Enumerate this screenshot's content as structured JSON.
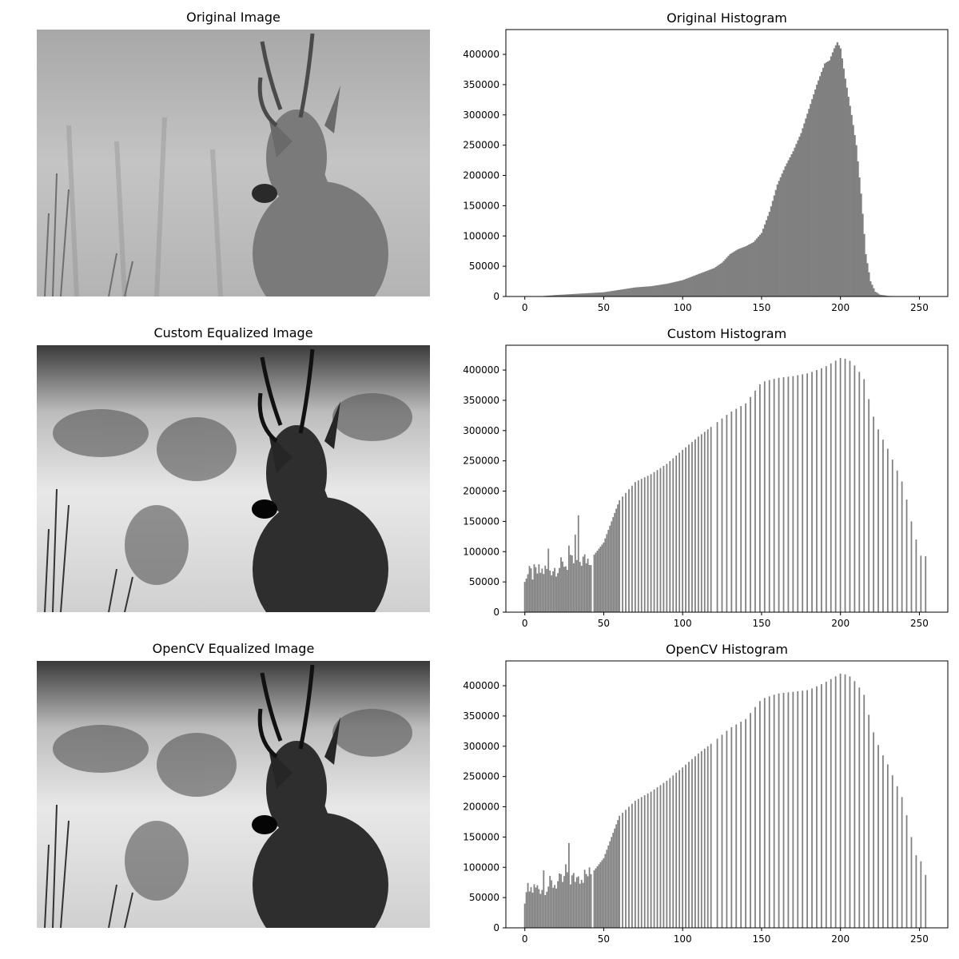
{
  "panels": {
    "original_image_title": "Original Image",
    "custom_image_title": "Custom Equalized Image",
    "opencv_image_title": "OpenCV Equalized Image"
  },
  "chart_data": [
    {
      "type": "bar",
      "title": "Original Histogram",
      "xlabel": "",
      "ylabel": "",
      "xlim": [
        -12,
        268
      ],
      "ylim": [
        0,
        441000
      ],
      "xticks": [
        0,
        50,
        100,
        150,
        200,
        250
      ],
      "yticks": [
        0,
        50000,
        100000,
        150000,
        200000,
        250000,
        300000,
        350000,
        400000
      ],
      "bar_color": "#808080",
      "grid": false,
      "mode": "continuous",
      "anchors": [
        [
          10,
          0
        ],
        [
          12,
          800
        ],
        [
          20,
          2500
        ],
        [
          30,
          4000
        ],
        [
          40,
          5500
        ],
        [
          50,
          7000
        ],
        [
          60,
          11000
        ],
        [
          70,
          15000
        ],
        [
          80,
          17000
        ],
        [
          90,
          21000
        ],
        [
          100,
          27000
        ],
        [
          110,
          37000
        ],
        [
          120,
          47000
        ],
        [
          125,
          56000
        ],
        [
          130,
          70000
        ],
        [
          135,
          78000
        ],
        [
          140,
          83000
        ],
        [
          145,
          90000
        ],
        [
          150,
          105000
        ],
        [
          155,
          140000
        ],
        [
          160,
          185000
        ],
        [
          165,
          215000
        ],
        [
          170,
          240000
        ],
        [
          175,
          270000
        ],
        [
          180,
          310000
        ],
        [
          185,
          350000
        ],
        [
          190,
          385000
        ],
        [
          193,
          390000
        ],
        [
          196,
          410000
        ],
        [
          198,
          420000
        ],
        [
          200,
          410000
        ],
        [
          203,
          360000
        ],
        [
          207,
          300000
        ],
        [
          210,
          250000
        ],
        [
          213,
          170000
        ],
        [
          216,
          70000
        ],
        [
          219,
          25000
        ],
        [
          222,
          8000
        ],
        [
          225,
          3000
        ],
        [
          230,
          1000
        ],
        [
          236,
          300
        ],
        [
          240,
          0
        ]
      ]
    },
    {
      "type": "bar",
      "title": "Custom Histogram",
      "xlabel": "",
      "ylabel": "",
      "xlim": [
        -12,
        268
      ],
      "ylim": [
        0,
        441000
      ],
      "xticks": [
        0,
        50,
        100,
        150,
        200,
        250
      ],
      "yticks": [
        0,
        50000,
        100000,
        150000,
        200000,
        250000,
        300000,
        350000,
        400000
      ],
      "bar_color": "#808080",
      "grid": false,
      "mode": "sparse",
      "dense_until": 42,
      "spikes": [
        [
          15,
          105000
        ],
        [
          25,
          75000
        ],
        [
          28,
          110000
        ],
        [
          32,
          128000
        ],
        [
          34,
          160000
        ]
      ],
      "sparse_start": 44,
      "envelope": [
        [
          44,
          95000
        ],
        [
          50,
          115000
        ],
        [
          55,
          150000
        ],
        [
          60,
          185000
        ],
        [
          70,
          215000
        ],
        [
          80,
          228000
        ],
        [
          90,
          245000
        ],
        [
          100,
          268000
        ],
        [
          110,
          290000
        ],
        [
          120,
          310000
        ],
        [
          130,
          330000
        ],
        [
          140,
          345000
        ],
        [
          150,
          380000
        ],
        [
          160,
          387000
        ],
        [
          170,
          390000
        ],
        [
          180,
          395000
        ],
        [
          190,
          405000
        ],
        [
          200,
          420000
        ],
        [
          205,
          418000
        ],
        [
          210,
          405000
        ],
        [
          215,
          385000
        ],
        [
          220,
          330000
        ],
        [
          225,
          295000
        ],
        [
          230,
          270000
        ],
        [
          235,
          240000
        ],
        [
          240,
          210000
        ],
        [
          245,
          150000
        ],
        [
          250,
          100000
        ],
        [
          253,
          80000
        ],
        [
          255,
          105000
        ]
      ]
    },
    {
      "type": "bar",
      "title": "OpenCV Histogram",
      "xlabel": "",
      "ylabel": "",
      "xlim": [
        -12,
        268
      ],
      "ylim": [
        0,
        441000
      ],
      "xticks": [
        0,
        50,
        100,
        150,
        200,
        250
      ],
      "yticks": [
        0,
        50000,
        100000,
        150000,
        200000,
        250000,
        300000,
        350000,
        400000
      ],
      "bar_color": "#808080",
      "grid": false,
      "mode": "sparse",
      "dense_until": 42,
      "spikes": [
        [
          0,
          40000
        ],
        [
          12,
          95000
        ],
        [
          26,
          105000
        ],
        [
          28,
          140000
        ],
        [
          34,
          85000
        ]
      ],
      "sparse_start": 44,
      "envelope": [
        [
          44,
          95000
        ],
        [
          50,
          115000
        ],
        [
          55,
          150000
        ],
        [
          60,
          185000
        ],
        [
          70,
          210000
        ],
        [
          80,
          225000
        ],
        [
          90,
          243000
        ],
        [
          100,
          265000
        ],
        [
          110,
          288000
        ],
        [
          120,
          308000
        ],
        [
          130,
          330000
        ],
        [
          140,
          345000
        ],
        [
          150,
          378000
        ],
        [
          160,
          387000
        ],
        [
          170,
          390000
        ],
        [
          180,
          393000
        ],
        [
          190,
          405000
        ],
        [
          200,
          420000
        ],
        [
          205,
          418000
        ],
        [
          210,
          405000
        ],
        [
          215,
          385000
        ],
        [
          220,
          330000
        ],
        [
          225,
          295000
        ],
        [
          230,
          270000
        ],
        [
          235,
          240000
        ],
        [
          240,
          210000
        ],
        [
          245,
          150000
        ],
        [
          250,
          100000
        ],
        [
          253,
          130000
        ],
        [
          255,
          45000
        ]
      ]
    }
  ]
}
